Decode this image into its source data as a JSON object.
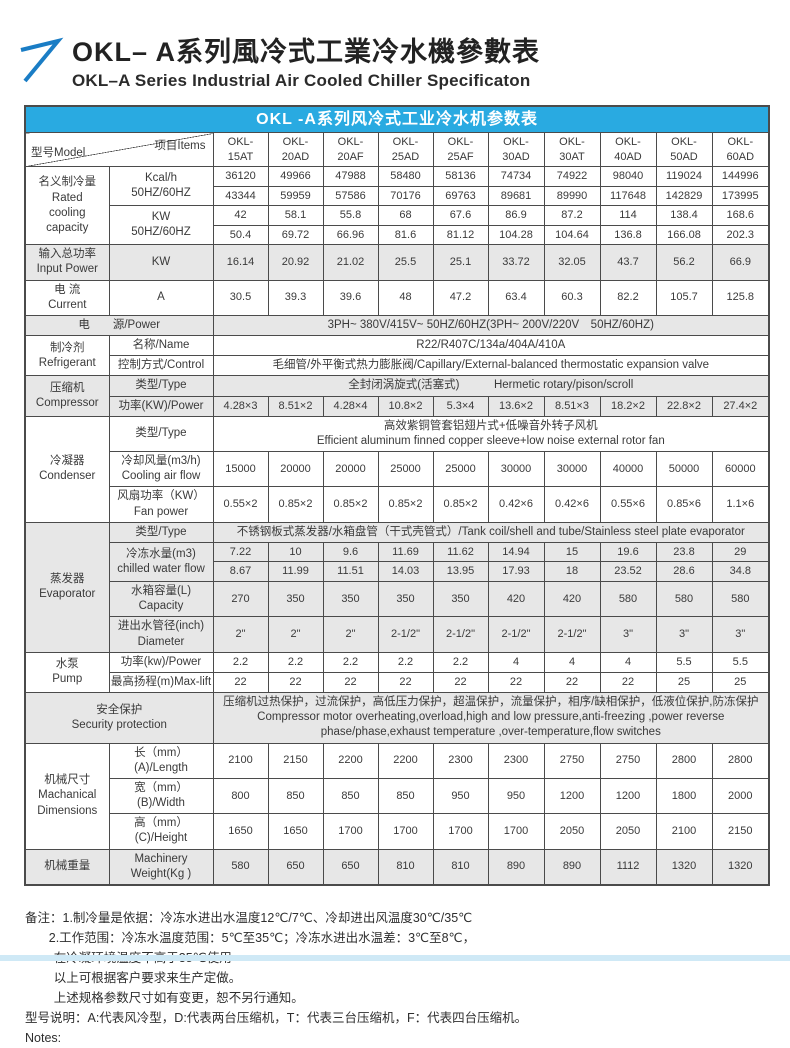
{
  "page": {
    "title_cn": "OKL– A系列風冷式工業冷水機參數表",
    "title_en": "OKL–A Series Industrial Air Cooled Chiller Specificaton"
  },
  "colors": {
    "accent_blue": "#29aae1",
    "shade_gray": "#e7e7e7",
    "border": "#4b4b4b",
    "strip_blue": "#cfe9f6",
    "logo_blue": "#1a7dc5"
  },
  "icons": {
    "logo": "arrow-up-right-icon"
  },
  "table": {
    "title": "OKL -A系列风冷式工业冷水机参数表",
    "corner": {
      "model": "型号Model",
      "items": "项目Items"
    },
    "rows": [
      {
        "shade": false,
        "cells": [
          {
            "corner": true,
            "cs": 2
          },
          {
            "t": "OKL-\n15AT",
            "cls": "model"
          },
          {
            "t": "OKL-\n20AD",
            "cls": "model"
          },
          {
            "t": "OKL-\n20AF",
            "cls": "model"
          },
          {
            "t": "OKL-\n25AD",
            "cls": "model"
          },
          {
            "t": "OKL-\n25AF",
            "cls": "model"
          },
          {
            "t": "OKL-\n30AD",
            "cls": "model"
          },
          {
            "t": "OKL-\n30AT",
            "cls": "model"
          },
          {
            "t": "OKL-\n40AD",
            "cls": "model"
          },
          {
            "t": "OKL-\n50AD",
            "cls": "model"
          },
          {
            "t": "OKL-\n60AD",
            "cls": "model"
          }
        ]
      },
      {
        "shade": false,
        "cells": [
          {
            "t": "名义制冷量\nRated\ncooling\ncapacity",
            "rs": 4,
            "cls": "lab1"
          },
          {
            "t": "Kcal/h\n50HZ/60HZ",
            "rs": 2,
            "cls": "lab2"
          },
          {
            "t": "36120"
          },
          {
            "t": "49966"
          },
          {
            "t": "47988"
          },
          {
            "t": "58480"
          },
          {
            "t": "58136"
          },
          {
            "t": "74734"
          },
          {
            "t": "74922"
          },
          {
            "t": "98040"
          },
          {
            "t": "119024"
          },
          {
            "t": "144996"
          }
        ]
      },
      {
        "shade": false,
        "cells": [
          {
            "t": "43344"
          },
          {
            "t": "59959"
          },
          {
            "t": "57586"
          },
          {
            "t": "70176"
          },
          {
            "t": "69763"
          },
          {
            "t": "89681"
          },
          {
            "t": "89990"
          },
          {
            "t": "117648"
          },
          {
            "t": "142829"
          },
          {
            "t": "173995"
          }
        ]
      },
      {
        "shade": false,
        "cells": [
          {
            "t": "KW\n50HZ/60HZ",
            "rs": 2,
            "cls": "lab2"
          },
          {
            "t": "42"
          },
          {
            "t": "58.1"
          },
          {
            "t": "55.8"
          },
          {
            "t": "68"
          },
          {
            "t": "67.6"
          },
          {
            "t": "86.9"
          },
          {
            "t": "87.2"
          },
          {
            "t": "114"
          },
          {
            "t": "138.4"
          },
          {
            "t": "168.6"
          }
        ]
      },
      {
        "shade": false,
        "cells": [
          {
            "t": "50.4"
          },
          {
            "t": "69.72"
          },
          {
            "t": "66.96"
          },
          {
            "t": "81.6"
          },
          {
            "t": "81.12"
          },
          {
            "t": "104.28"
          },
          {
            "t": "104.64"
          },
          {
            "t": "136.8"
          },
          {
            "t": "166.08"
          },
          {
            "t": "202.3"
          }
        ]
      },
      {
        "shade": true,
        "cells": [
          {
            "t": "输入总功率\nInput Power",
            "cls": "lab1"
          },
          {
            "t": "KW",
            "cls": "lab2"
          },
          {
            "t": "16.14"
          },
          {
            "t": "20.92"
          },
          {
            "t": "21.02"
          },
          {
            "t": "25.5"
          },
          {
            "t": "25.1"
          },
          {
            "t": "33.72"
          },
          {
            "t": "32.05"
          },
          {
            "t": "43.7"
          },
          {
            "t": "56.2"
          },
          {
            "t": "66.9"
          }
        ]
      },
      {
        "shade": false,
        "cells": [
          {
            "t": "电 流\nCurrent",
            "cls": "lab1"
          },
          {
            "t": "A",
            "cls": "lab2"
          },
          {
            "t": "30.5"
          },
          {
            "t": "39.3"
          },
          {
            "t": "39.6"
          },
          {
            "t": "48"
          },
          {
            "t": "47.2"
          },
          {
            "t": "63.4"
          },
          {
            "t": "60.3"
          },
          {
            "t": "82.2"
          },
          {
            "t": "105.7"
          },
          {
            "t": "125.8"
          }
        ]
      },
      {
        "shade": true,
        "cells": [
          {
            "t": "电　　源/Power",
            "cs": 2,
            "cls": "lab1"
          },
          {
            "t": "3PH~ 380V/415V~ 50HZ/60HZ(3PH~ 200V/220V　50HZ/60HZ)",
            "cs": 10,
            "cls": "wide"
          }
        ]
      },
      {
        "shade": false,
        "cells": [
          {
            "t": "制冷剂\nRefrigerant",
            "rs": 2,
            "cls": "lab1"
          },
          {
            "t": "名称/Name",
            "cls": "lab2"
          },
          {
            "t": "R22/R407C/134a/404A/410A",
            "cs": 10,
            "cls": "wide"
          }
        ]
      },
      {
        "shade": false,
        "cells": [
          {
            "t": "控制方式/Control",
            "cls": "lab2"
          },
          {
            "t": "毛细管/外平衡式热力膨胀阀/Capillary/External-balanced thermostatic expansion valve",
            "cs": 10,
            "cls": "wide"
          }
        ]
      },
      {
        "shade": true,
        "cells": [
          {
            "t": "压缩机\nCompressor",
            "rs": 2,
            "cls": "lab1"
          },
          {
            "t": "类型/Type",
            "cls": "lab2"
          },
          {
            "t": "全封闭涡旋式(活塞式)　　　Hermetic rotary/pison/scroll",
            "cs": 10,
            "cls": "wide"
          }
        ]
      },
      {
        "shade": true,
        "cells": [
          {
            "t": "功率(KW)/Power",
            "cls": "lab2"
          },
          {
            "t": "4.28×3"
          },
          {
            "t": "8.51×2"
          },
          {
            "t": "4.28×4"
          },
          {
            "t": "10.8×2"
          },
          {
            "t": "5.3×4"
          },
          {
            "t": "13.6×2"
          },
          {
            "t": "8.51×3"
          },
          {
            "t": "18.2×2"
          },
          {
            "t": "22.8×2"
          },
          {
            "t": "27.4×2"
          }
        ]
      },
      {
        "shade": false,
        "cells": [
          {
            "t": "冷凝器\nCondenser",
            "rs": 3,
            "cls": "lab1"
          },
          {
            "t": "类型/Type",
            "cls": "lab2"
          },
          {
            "t": "高效紫铜管套铝翅片式+低噪音外转子风机\nEfficient aluminum finned copper sleeve+low noise external rotor fan",
            "cs": 10,
            "cls": "wide"
          }
        ]
      },
      {
        "shade": false,
        "cells": [
          {
            "t": "冷却风量(m3/h)\nCooling air flow",
            "cls": "lab2"
          },
          {
            "t": "15000"
          },
          {
            "t": "20000"
          },
          {
            "t": "20000"
          },
          {
            "t": "25000"
          },
          {
            "t": "25000"
          },
          {
            "t": "30000"
          },
          {
            "t": "30000"
          },
          {
            "t": "40000"
          },
          {
            "t": "50000"
          },
          {
            "t": "60000"
          }
        ]
      },
      {
        "shade": false,
        "cells": [
          {
            "t": "风扇功率（KW）\nFan power",
            "cls": "lab2"
          },
          {
            "t": "0.55×2"
          },
          {
            "t": "0.85×2"
          },
          {
            "t": "0.85×2"
          },
          {
            "t": "0.85×2"
          },
          {
            "t": "0.85×2"
          },
          {
            "t": "0.42×6"
          },
          {
            "t": "0.42×6"
          },
          {
            "t": "0.55×6"
          },
          {
            "t": "0.85×6"
          },
          {
            "t": "1.1×6"
          }
        ]
      },
      {
        "shade": true,
        "cells": [
          {
            "t": "蒸发器\nEvaporator",
            "rs": 5,
            "cls": "lab1"
          },
          {
            "t": "类型/Type",
            "cls": "lab2"
          },
          {
            "t": "不锈钢板式蒸发器/水箱盘管（干式壳管式）/Tank coil/shell and tube/Stainless steel plate evaporator",
            "cs": 10,
            "cls": "wide"
          }
        ]
      },
      {
        "shade": true,
        "cells": [
          {
            "t": "冷冻水量(m3)\nchilled water flow",
            "rs": 2,
            "cls": "lab2"
          },
          {
            "t": "7.22"
          },
          {
            "t": "10"
          },
          {
            "t": "9.6"
          },
          {
            "t": "11.69"
          },
          {
            "t": "11.62"
          },
          {
            "t": "14.94"
          },
          {
            "t": "15"
          },
          {
            "t": "19.6"
          },
          {
            "t": "23.8"
          },
          {
            "t": "29"
          }
        ]
      },
      {
        "shade": true,
        "cells": [
          {
            "t": "8.67"
          },
          {
            "t": "11.99"
          },
          {
            "t": "11.51"
          },
          {
            "t": "14.03"
          },
          {
            "t": "13.95"
          },
          {
            "t": "17.93"
          },
          {
            "t": "18"
          },
          {
            "t": "23.52"
          },
          {
            "t": "28.6"
          },
          {
            "t": "34.8"
          }
        ]
      },
      {
        "shade": true,
        "cells": [
          {
            "t": "水箱容量(L)\nCapacity",
            "cls": "lab2"
          },
          {
            "t": "270"
          },
          {
            "t": "350"
          },
          {
            "t": "350"
          },
          {
            "t": "350"
          },
          {
            "t": "350"
          },
          {
            "t": "420"
          },
          {
            "t": "420"
          },
          {
            "t": "580"
          },
          {
            "t": "580"
          },
          {
            "t": "580"
          }
        ]
      },
      {
        "shade": true,
        "cells": [
          {
            "t": "进出水管径(inch)\nDiameter",
            "cls": "lab2"
          },
          {
            "t": "2\""
          },
          {
            "t": "2\""
          },
          {
            "t": "2\""
          },
          {
            "t": "2-1/2\""
          },
          {
            "t": "2-1/2\""
          },
          {
            "t": "2-1/2\""
          },
          {
            "t": "2-1/2\""
          },
          {
            "t": "3\""
          },
          {
            "t": "3\""
          },
          {
            "t": "3\""
          }
        ]
      },
      {
        "shade": false,
        "cells": [
          {
            "t": "水泵\nPump",
            "rs": 2,
            "cls": "lab1"
          },
          {
            "t": "功率(kw)/Power",
            "cls": "lab2"
          },
          {
            "t": "2.2"
          },
          {
            "t": "2.2"
          },
          {
            "t": "2.2"
          },
          {
            "t": "2.2"
          },
          {
            "t": "2.2"
          },
          {
            "t": "4"
          },
          {
            "t": "4"
          },
          {
            "t": "4"
          },
          {
            "t": "5.5"
          },
          {
            "t": "5.5"
          }
        ]
      },
      {
        "shade": false,
        "cells": [
          {
            "t": "最高扬程(m)Max-lift",
            "cls": "lab2"
          },
          {
            "t": "22"
          },
          {
            "t": "22"
          },
          {
            "t": "22"
          },
          {
            "t": "22"
          },
          {
            "t": "22"
          },
          {
            "t": "22"
          },
          {
            "t": "22"
          },
          {
            "t": "22"
          },
          {
            "t": "25"
          },
          {
            "t": "25"
          }
        ]
      },
      {
        "shade": true,
        "cells": [
          {
            "t": "安全保护\nSecurity protection",
            "cs": 2,
            "cls": "lab1"
          },
          {
            "t": "压缩机过热保护，过流保护，高低压力保护，超温保护，流量保护，相序/缺相保护，低液位保护,防冻保护\nCompressor motor overheating,overload,high and low pressure,anti-freezing ,power reverse\nphase/phase,exhaust temperature ,over-temperature,flow switches",
            "cs": 10,
            "cls": "wide"
          }
        ]
      },
      {
        "shade": false,
        "cells": [
          {
            "t": "机械尺寸\nMachanical\nDimensions",
            "rs": 3,
            "cls": "lab1"
          },
          {
            "t": "长（mm）(A)/Length",
            "cls": "lab2"
          },
          {
            "t": "2100"
          },
          {
            "t": "2150"
          },
          {
            "t": "2200"
          },
          {
            "t": "2200"
          },
          {
            "t": "2300"
          },
          {
            "t": "2300"
          },
          {
            "t": "2750"
          },
          {
            "t": "2750"
          },
          {
            "t": "2800"
          },
          {
            "t": "2800"
          }
        ]
      },
      {
        "shade": false,
        "cells": [
          {
            "t": "宽（mm）(B)/Width",
            "cls": "lab2"
          },
          {
            "t": "800"
          },
          {
            "t": "850"
          },
          {
            "t": "850"
          },
          {
            "t": "850"
          },
          {
            "t": "950"
          },
          {
            "t": "950"
          },
          {
            "t": "1200"
          },
          {
            "t": "1200"
          },
          {
            "t": "1800"
          },
          {
            "t": "2000"
          }
        ]
      },
      {
        "shade": false,
        "cells": [
          {
            "t": "高（mm）(C)/Height",
            "cls": "lab2"
          },
          {
            "t": "1650"
          },
          {
            "t": "1650"
          },
          {
            "t": "1700"
          },
          {
            "t": "1700"
          },
          {
            "t": "1700"
          },
          {
            "t": "1700"
          },
          {
            "t": "2050"
          },
          {
            "t": "2050"
          },
          {
            "t": "2100"
          },
          {
            "t": "2150"
          }
        ]
      },
      {
        "shade": true,
        "cells": [
          {
            "t": "机械重量",
            "cls": "lab1"
          },
          {
            "t": "Machinery\nWeight(Kg )",
            "cls": "lab2"
          },
          {
            "t": "580"
          },
          {
            "t": "650"
          },
          {
            "t": "650"
          },
          {
            "t": "810"
          },
          {
            "t": "810"
          },
          {
            "t": "890"
          },
          {
            "t": "890"
          },
          {
            "t": "1112"
          },
          {
            "t": "1320"
          },
          {
            "t": "1320"
          }
        ]
      }
    ]
  },
  "notes": {
    "lines": [
      {
        "text": "备注：1.制冷量是依据：冷冻水进出水温度12℃/7℃、冷却进出风温度30℃/35℃",
        "indent": 0
      },
      {
        "text": "2.工作范围：冷冻水温度范围：5℃至35℃；冷冻水进出水温差：3℃至8℃，",
        "indent": 1.9
      },
      {
        "text": "在冷凝环境温度不高于35℃使用",
        "indent": 2.3
      },
      {
        "text": "以上可根据客户要求来生产定做。",
        "indent": 2.3
      },
      {
        "text": "上述规格参数尺寸如有变更，恕不另行通知。",
        "indent": 2.3
      },
      {
        "text": "型号说明：A:代表风冷型，D:代表两台压缩机，T：代表三台压缩机，F：代表四台压缩机。",
        "indent": 0
      },
      {
        "text": "Notes:",
        "indent": 0
      }
    ]
  }
}
